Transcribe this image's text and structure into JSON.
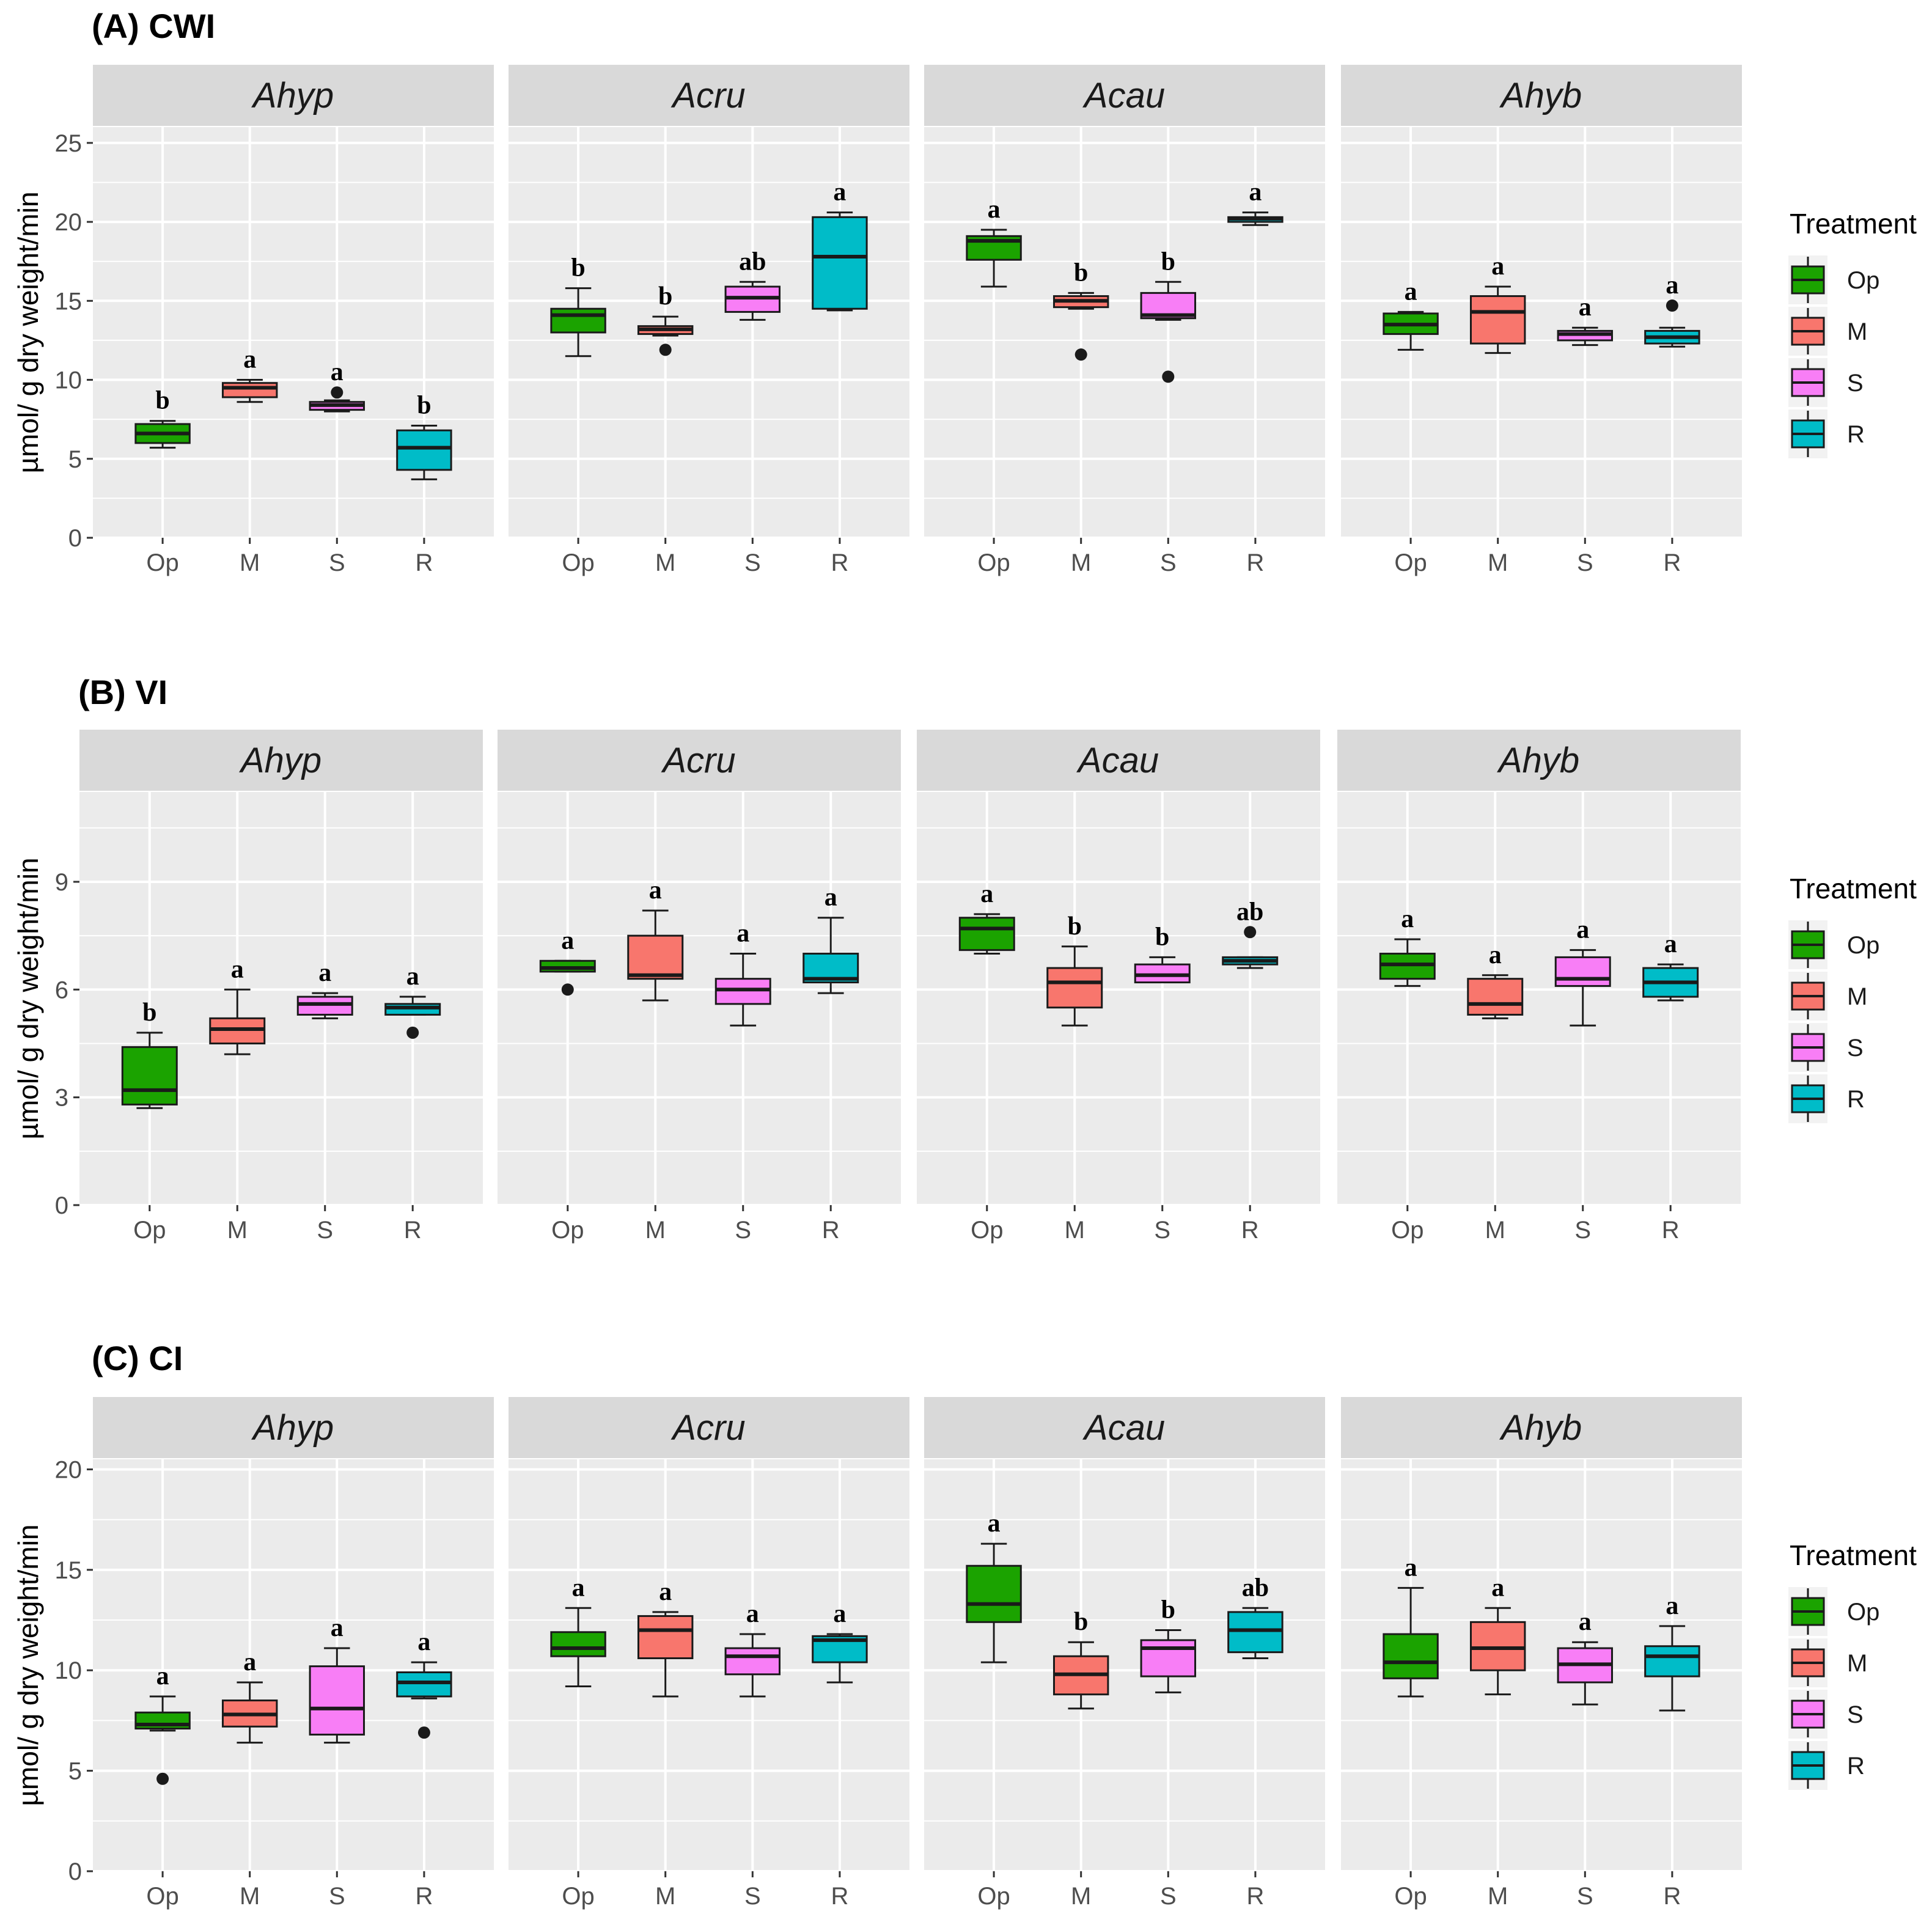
{
  "chart_data": [
    {
      "id": "A",
      "type": "boxplot",
      "title": "(A) CWI",
      "ylabel": "µmol/ g dry weight/min",
      "xlabel": "",
      "ylim": [
        0,
        26
      ],
      "yticks": [
        0,
        5,
        10,
        15,
        20,
        25
      ],
      "facets": [
        "Ahyp",
        "Acru",
        "Acau",
        "Ahyb"
      ],
      "categories": [
        "Op",
        "M",
        "S",
        "R"
      ],
      "boxes": [
        [
          {
            "min": 5.7,
            "q1": 6.0,
            "median": 6.6,
            "q3": 7.2,
            "max": 7.4,
            "outliers": [],
            "letter": "b"
          },
          {
            "min": 8.6,
            "q1": 8.9,
            "median": 9.5,
            "q3": 9.8,
            "max": 10.0,
            "outliers": [],
            "letter": "a"
          },
          {
            "min": 8.0,
            "q1": 8.1,
            "median": 8.4,
            "q3": 8.6,
            "max": 8.7,
            "outliers": [
              9.2
            ],
            "letter": "a"
          },
          {
            "min": 3.7,
            "q1": 4.3,
            "median": 5.7,
            "q3": 6.8,
            "max": 7.1,
            "outliers": [],
            "letter": "b"
          }
        ],
        [
          {
            "min": 11.5,
            "q1": 13.0,
            "median": 14.1,
            "q3": 14.5,
            "max": 15.8,
            "outliers": [],
            "letter": "b"
          },
          {
            "min": 12.8,
            "q1": 12.9,
            "median": 13.2,
            "q3": 13.4,
            "max": 14.0,
            "outliers": [
              11.9
            ],
            "letter": "b"
          },
          {
            "min": 13.8,
            "q1": 14.3,
            "median": 15.2,
            "q3": 15.9,
            "max": 16.2,
            "outliers": [],
            "letter": "ab"
          },
          {
            "min": 14.4,
            "q1": 14.5,
            "median": 17.8,
            "q3": 20.3,
            "max": 20.6,
            "outliers": [],
            "letter": "a"
          }
        ],
        [
          {
            "min": 15.9,
            "q1": 17.6,
            "median": 18.8,
            "q3": 19.1,
            "max": 19.5,
            "outliers": [],
            "letter": "a"
          },
          {
            "min": 14.5,
            "q1": 14.6,
            "median": 15.0,
            "q3": 15.3,
            "max": 15.5,
            "outliers": [
              11.6
            ],
            "letter": "b"
          },
          {
            "min": 13.8,
            "q1": 13.9,
            "median": 14.1,
            "q3": 15.5,
            "max": 16.2,
            "outliers": [
              10.2
            ],
            "letter": "b"
          },
          {
            "min": 19.8,
            "q1": 20.0,
            "median": 20.2,
            "q3": 20.3,
            "max": 20.6,
            "outliers": [],
            "letter": "a"
          }
        ],
        [
          {
            "min": 11.9,
            "q1": 12.9,
            "median": 13.5,
            "q3": 14.2,
            "max": 14.3,
            "outliers": [],
            "letter": "a"
          },
          {
            "min": 11.7,
            "q1": 12.3,
            "median": 14.3,
            "q3": 15.3,
            "max": 15.9,
            "outliers": [],
            "letter": "a"
          },
          {
            "min": 12.2,
            "q1": 12.5,
            "median": 12.9,
            "q3": 13.1,
            "max": 13.3,
            "outliers": [],
            "letter": "a"
          },
          {
            "min": 12.1,
            "q1": 12.3,
            "median": 12.7,
            "q3": 13.1,
            "max": 13.3,
            "outliers": [
              14.7
            ],
            "letter": "a"
          }
        ]
      ]
    },
    {
      "id": "B",
      "type": "boxplot",
      "title": "(B) VI",
      "ylabel": "µmol/ g dry weight/min",
      "xlabel": "",
      "ylim": [
        0,
        11.5
      ],
      "yticks": [
        0,
        3,
        6,
        9
      ],
      "facets": [
        "Ahyp",
        "Acru",
        "Acau",
        "Ahyb"
      ],
      "categories": [
        "Op",
        "M",
        "S",
        "R"
      ],
      "boxes": [
        [
          {
            "min": 2.7,
            "q1": 2.8,
            "median": 3.2,
            "q3": 4.4,
            "max": 4.8,
            "outliers": [],
            "letter": "b"
          },
          {
            "min": 4.2,
            "q1": 4.5,
            "median": 4.9,
            "q3": 5.2,
            "max": 6.0,
            "outliers": [],
            "letter": "a"
          },
          {
            "min": 5.2,
            "q1": 5.3,
            "median": 5.6,
            "q3": 5.8,
            "max": 5.9,
            "outliers": [],
            "letter": "a"
          },
          {
            "min": 5.3,
            "q1": 5.3,
            "median": 5.5,
            "q3": 5.6,
            "max": 5.8,
            "outliers": [
              4.8
            ],
            "letter": "a"
          }
        ],
        [
          {
            "min": 6.5,
            "q1": 6.5,
            "median": 6.6,
            "q3": 6.8,
            "max": 6.8,
            "outliers": [
              6.0
            ],
            "letter": "a"
          },
          {
            "min": 5.7,
            "q1": 6.3,
            "median": 6.4,
            "q3": 7.5,
            "max": 8.2,
            "outliers": [],
            "letter": "a"
          },
          {
            "min": 5.0,
            "q1": 5.6,
            "median": 6.0,
            "q3": 6.3,
            "max": 7.0,
            "outliers": [],
            "letter": "a"
          },
          {
            "min": 5.9,
            "q1": 6.2,
            "median": 6.3,
            "q3": 7.0,
            "max": 8.0,
            "outliers": [],
            "letter": "a"
          }
        ],
        [
          {
            "min": 7.0,
            "q1": 7.1,
            "median": 7.7,
            "q3": 8.0,
            "max": 8.1,
            "outliers": [],
            "letter": "a"
          },
          {
            "min": 5.0,
            "q1": 5.5,
            "median": 6.2,
            "q3": 6.6,
            "max": 7.2,
            "outliers": [],
            "letter": "b"
          },
          {
            "min": 6.2,
            "q1": 6.2,
            "median": 6.4,
            "q3": 6.7,
            "max": 6.9,
            "outliers": [],
            "letter": "b"
          },
          {
            "min": 6.6,
            "q1": 6.7,
            "median": 6.8,
            "q3": 6.9,
            "max": 6.9,
            "outliers": [
              7.6
            ],
            "letter": "ab"
          }
        ],
        [
          {
            "min": 6.1,
            "q1": 6.3,
            "median": 6.7,
            "q3": 7.0,
            "max": 7.4,
            "outliers": [],
            "letter": "a"
          },
          {
            "min": 5.2,
            "q1": 5.3,
            "median": 5.6,
            "q3": 6.3,
            "max": 6.4,
            "outliers": [],
            "letter": "a"
          },
          {
            "min": 5.0,
            "q1": 6.1,
            "median": 6.3,
            "q3": 6.9,
            "max": 7.1,
            "outliers": [],
            "letter": "a"
          },
          {
            "min": 5.7,
            "q1": 5.8,
            "median": 6.2,
            "q3": 6.6,
            "max": 6.7,
            "outliers": [],
            "letter": "a"
          }
        ]
      ]
    },
    {
      "id": "C",
      "type": "boxplot",
      "title": "(C) CI",
      "ylabel": "µmol/ g dry weight/min",
      "xlabel": "",
      "ylim": [
        0,
        20.5
      ],
      "yticks": [
        0,
        5,
        10,
        15,
        20
      ],
      "facets": [
        "Ahyp",
        "Acru",
        "Acau",
        "Ahyb"
      ],
      "categories": [
        "Op",
        "M",
        "S",
        "R"
      ],
      "boxes": [
        [
          {
            "min": 7.0,
            "q1": 7.1,
            "median": 7.3,
            "q3": 7.9,
            "max": 8.7,
            "outliers": [
              4.6
            ],
            "letter": "a"
          },
          {
            "min": 6.4,
            "q1": 7.2,
            "median": 7.8,
            "q3": 8.5,
            "max": 9.4,
            "outliers": [],
            "letter": "a"
          },
          {
            "min": 6.4,
            "q1": 6.8,
            "median": 8.1,
            "q3": 10.2,
            "max": 11.1,
            "outliers": [],
            "letter": "a"
          },
          {
            "min": 8.6,
            "q1": 8.7,
            "median": 9.4,
            "q3": 9.9,
            "max": 10.4,
            "outliers": [
              6.9
            ],
            "letter": "a"
          }
        ],
        [
          {
            "min": 9.2,
            "q1": 10.7,
            "median": 11.1,
            "q3": 11.9,
            "max": 13.1,
            "outliers": [],
            "letter": "a"
          },
          {
            "min": 8.7,
            "q1": 10.6,
            "median": 12.0,
            "q3": 12.7,
            "max": 12.9,
            "outliers": [],
            "letter": "a"
          },
          {
            "min": 8.7,
            "q1": 9.8,
            "median": 10.7,
            "q3": 11.1,
            "max": 11.8,
            "outliers": [],
            "letter": "a"
          },
          {
            "min": 9.4,
            "q1": 10.4,
            "median": 11.5,
            "q3": 11.7,
            "max": 11.8,
            "outliers": [],
            "letter": "a"
          }
        ],
        [
          {
            "min": 10.4,
            "q1": 12.4,
            "median": 13.3,
            "q3": 15.2,
            "max": 16.3,
            "outliers": [],
            "letter": "a"
          },
          {
            "min": 8.1,
            "q1": 8.8,
            "median": 9.8,
            "q3": 10.7,
            "max": 11.4,
            "outliers": [],
            "letter": "b"
          },
          {
            "min": 8.9,
            "q1": 9.7,
            "median": 11.1,
            "q3": 11.5,
            "max": 12.0,
            "outliers": [],
            "letter": "b"
          },
          {
            "min": 10.6,
            "q1": 10.9,
            "median": 12.0,
            "q3": 12.9,
            "max": 13.1,
            "outliers": [],
            "letter": "ab"
          }
        ],
        [
          {
            "min": 8.7,
            "q1": 9.6,
            "median": 10.4,
            "q3": 11.8,
            "max": 14.1,
            "outliers": [],
            "letter": "a"
          },
          {
            "min": 8.8,
            "q1": 10.0,
            "median": 11.1,
            "q3": 12.4,
            "max": 13.1,
            "outliers": [],
            "letter": "a"
          },
          {
            "min": 8.3,
            "q1": 9.4,
            "median": 10.3,
            "q3": 11.1,
            "max": 11.4,
            "outliers": [],
            "letter": "a"
          },
          {
            "min": 8.0,
            "q1": 9.7,
            "median": 10.7,
            "q3": 11.2,
            "max": 12.2,
            "outliers": [],
            "letter": "a"
          }
        ]
      ]
    }
  ],
  "legend": {
    "title": "Treatment",
    "items": [
      {
        "label": "Op",
        "color": "#1ba300"
      },
      {
        "label": "M",
        "color": "#f8766d"
      },
      {
        "label": "S",
        "color": "#f87ef6"
      },
      {
        "label": "R",
        "color": "#00bcc8"
      }
    ]
  },
  "style": {
    "panel_background": "#ebebeb",
    "strip_background": "#d9d9d9",
    "grid_color": "#ffffff",
    "box_line_color": "#1a1a1a"
  }
}
